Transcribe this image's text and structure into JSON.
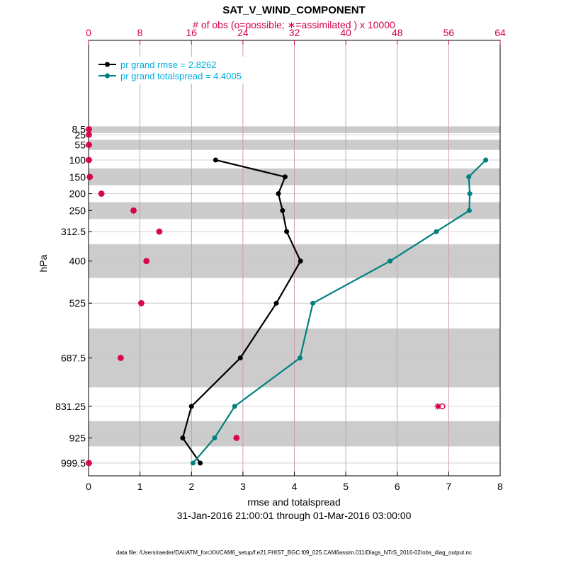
{
  "chart_data": {
    "type": "line",
    "title": "SAT_V_WIND_COMPONENT",
    "top_axis_label": "# of obs (o=possible; ∗=assimilated ) x 10000",
    "xlabel": "rmse and totalspread",
    "ylabel": "hPa",
    "date_range": "31-Jan-2016 21:00:01 through 01-Mar-2016 03:00:00",
    "footer": "data file: /Users/raeder/DAI/ATM_forcXX/CAM6_setup/f.e21.FHIST_BGC.f09_025.CAM6assim.011/Diags_NTrS_2016-02/obs_diag_output.nc",
    "xlim": [
      0,
      8
    ],
    "x_ticks": [
      "0",
      "1",
      "2",
      "3",
      "4",
      "5",
      "6",
      "7",
      "8"
    ],
    "top_xlim": [
      0,
      64
    ],
    "top_ticks": [
      "0",
      "8",
      "16",
      "24",
      "32",
      "40",
      "48",
      "56",
      "64"
    ],
    "levels": [
      8.5,
      25,
      55,
      100,
      150,
      200,
      250,
      312.5,
      400,
      525,
      687.5,
      831.25,
      925,
      999.5
    ],
    "level_labels": [
      "8.5",
      "25",
      "55",
      "100",
      "150",
      "200",
      "250",
      "312.5",
      "400",
      "525",
      "687.5",
      "831.25",
      "925",
      "999.5"
    ],
    "gray_bands": [
      [
        0,
        20
      ],
      [
        40,
        70
      ],
      [
        125,
        175
      ],
      [
        225,
        275
      ],
      [
        350,
        450
      ],
      [
        600,
        775
      ],
      [
        875,
        950
      ]
    ],
    "legend_position": "top-left",
    "legend": [
      "pr grand rmse = 2.8262",
      "pr grand totalspread = 4.4005"
    ],
    "series": [
      {
        "name": "pr grand rmse = 2.8262",
        "color": "#000000",
        "levels": [
          100,
          150,
          200,
          250,
          312.5,
          400,
          525,
          687.5,
          831.25,
          925,
          999.5
        ],
        "values": [
          2.47,
          3.82,
          3.69,
          3.77,
          3.85,
          4.12,
          3.65,
          2.95,
          2.0,
          1.83,
          2.17
        ]
      },
      {
        "name": "pr grand totalspread = 4.4005",
        "color": "#00807f",
        "levels": [
          100,
          150,
          200,
          250,
          312.5,
          400,
          525,
          687.5,
          831.25,
          925,
          999.5
        ],
        "values": [
          7.72,
          7.39,
          7.41,
          7.4,
          6.76,
          5.86,
          4.36,
          4.11,
          2.84,
          2.45,
          2.03
        ]
      }
    ],
    "obs_levels": [
      8.5,
      25,
      55,
      100,
      150,
      200,
      250,
      312.5,
      400,
      525,
      687.5,
      831.25,
      925,
      999.5
    ],
    "obs_possible": [
      0.05,
      0.05,
      0.05,
      0.05,
      0.2,
      2.0,
      7.0,
      11.0,
      9.0,
      8.2,
      5.0,
      55.0,
      23.0,
      0.05
    ],
    "obs_assimilated": [
      0.05,
      0.05,
      0.05,
      0.05,
      0.2,
      2.0,
      7.0,
      11.0,
      9.0,
      8.2,
      5.0,
      54.3,
      23.0,
      0.05
    ],
    "colors": {
      "rmse": "#000000",
      "spread": "#00807f",
      "obs": "#d6004c",
      "legend_text": "#00aee0",
      "band": "#cccccc",
      "grid": "#c8c8c8",
      "top_grid": "#c78f9f"
    }
  }
}
